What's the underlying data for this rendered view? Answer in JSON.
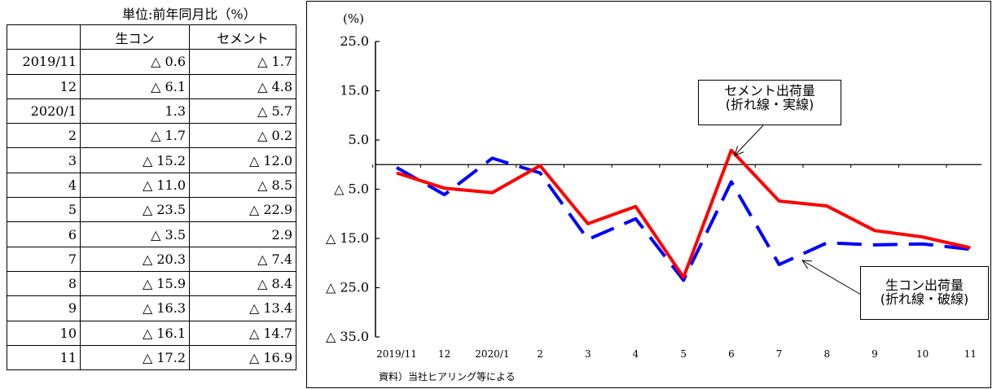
{
  "table": {
    "unit_note": "単位:前年同月比（%）",
    "headers": [
      "",
      "生コン",
      "セメント"
    ],
    "rows": [
      [
        "2019/11",
        "△ 0.6",
        "△ 1.7"
      ],
      [
        "12",
        "△ 6.1",
        "△ 4.8"
      ],
      [
        "2020/1",
        "1.3",
        "△ 5.7"
      ],
      [
        "2",
        "△ 1.7",
        "△ 0.2"
      ],
      [
        "3",
        "△ 15.2",
        "△ 12.0"
      ],
      [
        "4",
        "△ 11.0",
        "△ 8.5"
      ],
      [
        "5",
        "△ 23.5",
        "△ 22.9"
      ],
      [
        "6",
        "△ 3.5",
        "2.9"
      ],
      [
        "7",
        "△ 20.3",
        "△ 7.4"
      ],
      [
        "8",
        "△ 15.9",
        "△ 8.4"
      ],
      [
        "9",
        "△ 16.3",
        "△ 13.4"
      ],
      [
        "10",
        "△ 16.1",
        "△ 14.7"
      ],
      [
        "11",
        "△ 17.2",
        "△ 16.9"
      ]
    ]
  },
  "chart_data": {
    "type": "line",
    "y_unit_label": "(%)",
    "categories": [
      "2019/11",
      "12",
      "2020/1",
      "2",
      "3",
      "4",
      "5",
      "6",
      "7",
      "8",
      "9",
      "10",
      "11"
    ],
    "ylim": [
      -35,
      25
    ],
    "y_ticks": [
      {
        "value": 25,
        "label": "25.0"
      },
      {
        "value": 15,
        "label": "15.0"
      },
      {
        "value": 5,
        "label": "5.0"
      },
      {
        "value": -5,
        "label": "△ 5.0"
      },
      {
        "value": -15,
        "label": "△ 15.0"
      },
      {
        "value": -25,
        "label": "△ 25.0"
      },
      {
        "value": -35,
        "label": "△ 35.0"
      }
    ],
    "grid": false,
    "series": [
      {
        "name": "生コン",
        "style": "dashed",
        "color": "#0000ff",
        "values": [
          -0.6,
          -6.1,
          1.3,
          -1.7,
          -15.2,
          -11.0,
          -23.5,
          -3.5,
          -20.3,
          -15.9,
          -16.3,
          -16.1,
          -17.2
        ]
      },
      {
        "name": "セメント",
        "style": "solid",
        "color": "#ff0000",
        "values": [
          -1.7,
          -4.8,
          -5.7,
          -0.2,
          -12.0,
          -8.5,
          -22.9,
          2.9,
          -7.4,
          -8.4,
          -13.4,
          -14.7,
          -16.9
        ]
      }
    ],
    "annotations": {
      "cement_label_line1": "セメント出荷量",
      "cement_label_line2": "(折れ線・実線)",
      "concrete_label_line1": "生コン出荷量",
      "concrete_label_line2": "(折れ線・破線)"
    },
    "source_note": "資料）当社ヒアリング等による"
  }
}
